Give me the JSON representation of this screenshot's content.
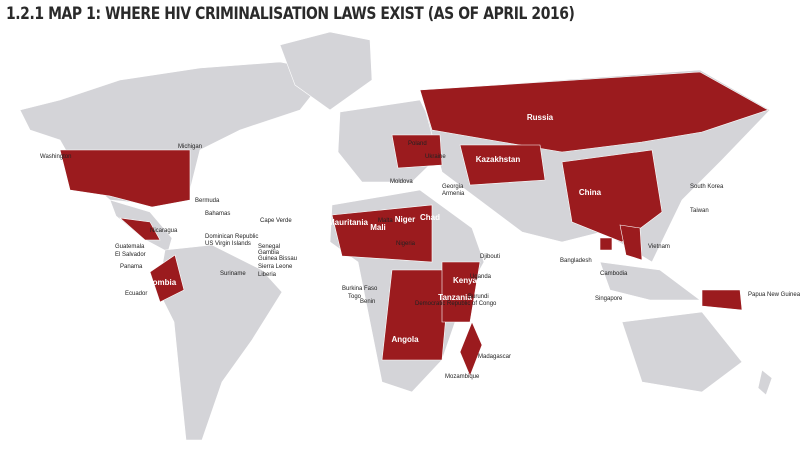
{
  "header": {
    "title": "1.2.1 MAP 1: WHERE HIV CRIMINALISATION LAWS EXIST (AS OF APRIL 2016)"
  },
  "labels": [
    "Russia",
    "China",
    "Kazakhstan",
    "Poland",
    "Ukraine",
    "Mali",
    "Niger",
    "Chad",
    "Mauritania",
    "Nigeria",
    "Democratic Republic of Congo",
    "Angola",
    "Kenya",
    "Tanzania",
    "Colombia",
    "Washington",
    "Michigan",
    "Bermuda",
    "Bahamas",
    "Dominican Republic",
    "US Virgin Islands",
    "Nicaragua",
    "Guatemala",
    "El Salvador",
    "Panama",
    "Ecuador",
    "Suriname",
    "Malta",
    "Cape Verde",
    "Senegal",
    "Gambia",
    "Guinea Bissau",
    "Sierra Leone",
    "Liberia",
    "Burkina Faso",
    "Togo",
    "Benin",
    "Uganda",
    "Burundi",
    "Madagascar",
    "Mozambique",
    "Djibouti",
    "Bangladesh",
    "Armenia",
    "Georgia",
    "Moldova",
    "South Korea",
    "Taiwan",
    "Vietnam",
    "Cambodia",
    "Singapore",
    "Papua New Guinea"
  ]
}
